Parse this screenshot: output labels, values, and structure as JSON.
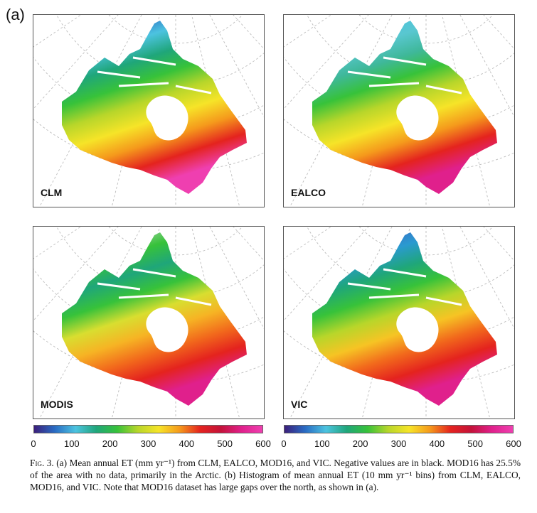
{
  "panel_label": "(a)",
  "maps": [
    {
      "label": "CLM"
    },
    {
      "label": "EALCO"
    },
    {
      "label": "MODIS"
    },
    {
      "label": "VIC"
    }
  ],
  "colorbar": {
    "ticks": [
      "0",
      "100",
      "200",
      "300",
      "400",
      "500",
      "600"
    ],
    "colors": [
      "#3b1e7a",
      "#2a6cc4",
      "#4cc3e0",
      "#1fa67a",
      "#37c23a",
      "#b8d62a",
      "#f6e428",
      "#f59a1c",
      "#e4231e",
      "#c4123a",
      "#e0208c",
      "#ef3fb0"
    ]
  },
  "caption": {
    "fig_label": "Fig. 3.",
    "text": " (a) Mean annual ET (mm yr⁻¹) from CLM, EALCO, MOD16, and VIC. Negative values are in black. MOD16 has 25.5% of the area with no data, primarily in the Arctic. (b) Histogram of mean annual ET (10 mm yr⁻¹ bins) from CLM, EALCO, MOD16, and VIC. Note that MOD16 dataset has large gaps over the north, as shown in (a)."
  }
}
